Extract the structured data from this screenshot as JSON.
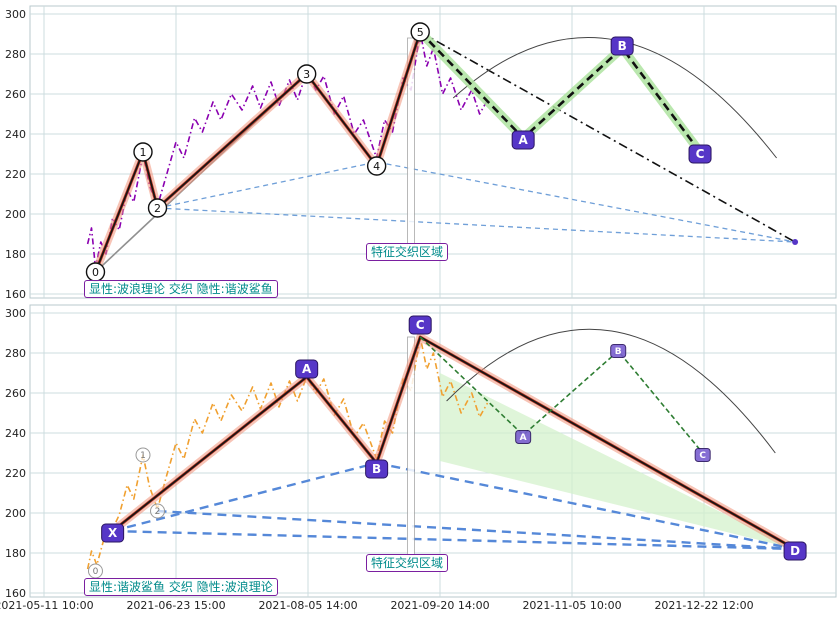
{
  "colors": {
    "grid": "#ccdcdf",
    "panel_border": "#b9c9cc",
    "price_top": "#8a00b0",
    "price_bottom": "#f0a030",
    "impulse_halo": "#f0937a",
    "impulse_core_red": "#b03020",
    "impulse_core_black": "#151515",
    "correction_halo": "#aee3a0",
    "correction_line": "#111111",
    "blue_dash_thin": "#6f9fd8",
    "blue_dash_thick": "#5588d8",
    "green_dash": "#2e7d32",
    "green_fill": "#d4f2cc",
    "badge_fill": "#5636c7",
    "badge_small_fill": "#7a5fd0",
    "badge_stroke": "#2a1560",
    "projection": "#111111",
    "trendline_gray": "#909090",
    "label_teal": "#008b8b",
    "label_border": "#7a1fa0",
    "arc": "#444444",
    "marker_fill": "#ffffff",
    "marker_stroke": "#999999",
    "endpoint_dot": "#5636c7",
    "axis_text": "#222222"
  },
  "axes": {
    "ylim": [
      160,
      300
    ],
    "y_ticks": [
      300,
      280,
      260,
      240,
      220,
      200,
      180,
      160
    ],
    "x_tick_labels": [
      "2021-05-11 10:00",
      "2021-06-23 15:00",
      "2021-08-05 14:00",
      "2021-09-20 14:00",
      "2021-11-05 10:00",
      "2021-12-22 12:00"
    ]
  },
  "labels": {
    "top_legend": "显性:波浪理论 交织 隐性:谐波鲨鱼",
    "bottom_legend": "显性:谐波鲨鱼 交织 隐性:波浪理论",
    "top_region": "特征交织区域",
    "bottom_region": "特征交织区域"
  },
  "chart_data": [
    {
      "panel": "top",
      "type": "line",
      "ylim": [
        160,
        300
      ],
      "x_unit": "tick intervals from 2021-05-11 10:00 (1 unit = one labeled interval)",
      "price_series": {
        "name": "price",
        "style": "dash-dot",
        "points": [
          [
            0.33,
            185
          ],
          [
            0.36,
            193
          ],
          [
            0.39,
            173
          ],
          [
            0.43,
            186
          ],
          [
            0.47,
            180
          ],
          [
            0.52,
            198
          ],
          [
            0.57,
            192
          ],
          [
            0.63,
            212
          ],
          [
            0.68,
            206
          ],
          [
            0.75,
            230
          ],
          [
            0.8,
            214
          ],
          [
            0.86,
            204
          ],
          [
            0.93,
            220
          ],
          [
            1.0,
            236
          ],
          [
            1.06,
            228
          ],
          [
            1.14,
            248
          ],
          [
            1.2,
            241
          ],
          [
            1.28,
            256
          ],
          [
            1.34,
            247
          ],
          [
            1.42,
            260
          ],
          [
            1.5,
            252
          ],
          [
            1.58,
            264
          ],
          [
            1.64,
            253
          ],
          [
            1.72,
            266
          ],
          [
            1.78,
            254
          ],
          [
            1.86,
            267
          ],
          [
            1.92,
            257
          ],
          [
            1.99,
            271
          ],
          [
            2.06,
            262
          ],
          [
            2.12,
            269
          ],
          [
            2.2,
            250
          ],
          [
            2.27,
            259
          ],
          [
            2.35,
            240
          ],
          [
            2.42,
            247
          ],
          [
            2.52,
            228
          ],
          [
            2.58,
            247
          ],
          [
            2.64,
            241
          ],
          [
            2.72,
            268
          ],
          [
            2.78,
            262
          ],
          [
            2.85,
            291
          ],
          [
            2.9,
            274
          ],
          [
            2.95,
            283
          ],
          [
            3.02,
            260
          ],
          [
            3.08,
            268
          ],
          [
            3.16,
            252
          ],
          [
            3.24,
            262
          ],
          [
            3.3,
            250
          ],
          [
            3.36,
            257
          ]
        ]
      },
      "elliott": {
        "labels": [
          "0",
          "1",
          "2",
          "3",
          "4",
          "5"
        ],
        "points": [
          [
            0.39,
            171
          ],
          [
            0.75,
            231
          ],
          [
            0.86,
            203
          ],
          [
            1.99,
            270
          ],
          [
            2.52,
            224
          ],
          [
            2.85,
            291
          ]
        ]
      },
      "correction": {
        "labels": [
          "A",
          "B",
          "C"
        ],
        "points": [
          [
            2.85,
            291
          ],
          [
            3.63,
            238
          ],
          [
            4.38,
            283
          ],
          [
            4.97,
            231
          ]
        ],
        "badges": [
          [
            3.63,
            237
          ],
          [
            4.38,
            284
          ],
          [
            4.97,
            230
          ]
        ]
      },
      "projection_end": [
        5.69,
        186
      ],
      "channel_lines": [
        [
          [
            0.86,
            203
          ],
          [
            2.52,
            226
          ],
          [
            5.69,
            186
          ]
        ],
        [
          [
            0.86,
            203
          ],
          [
            5.69,
            186
          ]
        ]
      ],
      "trendline": [
        [
          0.39,
          171
        ],
        [
          1.99,
          270
        ]
      ],
      "arc": {
        "from": [
          3.1,
          258
        ],
        "peak": [
          4.33,
          287
        ],
        "to": [
          5.55,
          228
        ]
      },
      "marker_x": 2.78
    },
    {
      "panel": "bottom",
      "type": "line",
      "ylim": [
        160,
        300
      ],
      "x_unit": "tick intervals from 2021-05-11 10:00 (1 unit = one labeled interval)",
      "price_series": {
        "name": "price",
        "style": "dash-dot",
        "points": [
          [
            0.33,
            172
          ],
          [
            0.36,
            181
          ],
          [
            0.4,
            174
          ],
          [
            0.45,
            186
          ],
          [
            0.52,
            192
          ],
          [
            0.57,
            199
          ],
          [
            0.63,
            214
          ],
          [
            0.68,
            207
          ],
          [
            0.75,
            229
          ],
          [
            0.8,
            213
          ],
          [
            0.86,
            202
          ],
          [
            0.93,
            219
          ],
          [
            1.0,
            235
          ],
          [
            1.06,
            227
          ],
          [
            1.14,
            247
          ],
          [
            1.2,
            240
          ],
          [
            1.28,
            255
          ],
          [
            1.34,
            246
          ],
          [
            1.42,
            259
          ],
          [
            1.5,
            251
          ],
          [
            1.58,
            263
          ],
          [
            1.64,
            252
          ],
          [
            1.72,
            265
          ],
          [
            1.78,
            253
          ],
          [
            1.86,
            266
          ],
          [
            1.92,
            256
          ],
          [
            1.99,
            268
          ],
          [
            2.06,
            260
          ],
          [
            2.12,
            267
          ],
          [
            2.2,
            249
          ],
          [
            2.27,
            257
          ],
          [
            2.35,
            238
          ],
          [
            2.42,
            245
          ],
          [
            2.52,
            227
          ],
          [
            2.58,
            246
          ],
          [
            2.64,
            240
          ],
          [
            2.72,
            267
          ],
          [
            2.78,
            261
          ],
          [
            2.85,
            288
          ],
          [
            2.9,
            272
          ],
          [
            2.95,
            280
          ],
          [
            3.02,
            258
          ],
          [
            3.08,
            266
          ],
          [
            3.16,
            250
          ],
          [
            3.24,
            260
          ],
          [
            3.3,
            248
          ],
          [
            3.36,
            255
          ]
        ]
      },
      "shark": {
        "labels": [
          "X",
          "A",
          "B",
          "C",
          "D"
        ],
        "points": [
          [
            0.52,
            191
          ],
          [
            1.99,
            268
          ],
          [
            2.52,
            225
          ],
          [
            2.85,
            288
          ],
          [
            5.69,
            182
          ]
        ],
        "badges": [
          [
            0.52,
            190
          ],
          [
            1.99,
            272
          ],
          [
            2.52,
            222
          ],
          [
            2.85,
            294
          ],
          [
            5.69,
            181
          ]
        ]
      },
      "hidden_waves": {
        "labels": [
          "0",
          "1",
          "2"
        ],
        "points": [
          [
            0.39,
            171
          ],
          [
            0.75,
            229
          ],
          [
            0.86,
            201
          ]
        ]
      },
      "hidden_correction": {
        "labels": [
          "A",
          "B",
          "C"
        ],
        "points_path": [
          [
            2.85,
            288
          ],
          [
            3.63,
            239
          ],
          [
            4.35,
            281
          ],
          [
            4.99,
            230
          ]
        ],
        "badges": [
          [
            3.63,
            238
          ],
          [
            4.35,
            281
          ],
          [
            4.99,
            229
          ]
        ]
      },
      "blue_lines": [
        [
          [
            0.52,
            191
          ],
          [
            2.52,
            225
          ]
        ],
        [
          [
            2.52,
            225
          ],
          [
            5.69,
            182
          ]
        ],
        [
          [
            0.52,
            191
          ],
          [
            5.69,
            182
          ]
        ],
        [
          [
            0.86,
            201
          ],
          [
            5.69,
            182
          ]
        ]
      ],
      "green_region": [
        [
          3.0,
          270
        ],
        [
          5.69,
          182
        ],
        [
          3.0,
          226
        ]
      ],
      "arc": {
        "from": [
          3.05,
          256
        ],
        "peak": [
          4.3,
          291
        ],
        "to": [
          5.54,
          230
        ]
      },
      "marker_x": 2.78
    }
  ]
}
